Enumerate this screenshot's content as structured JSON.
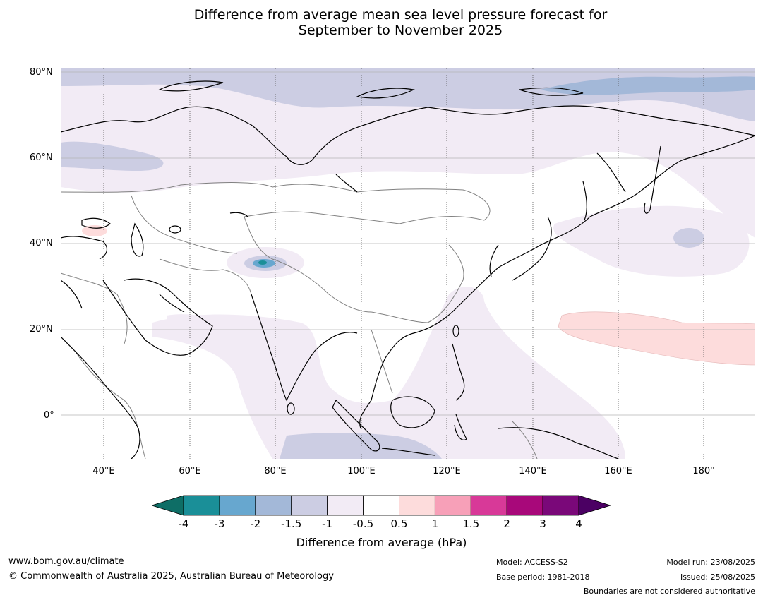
{
  "title_line1": "Difference from average mean sea level pressure forecast for",
  "title_line2": "September to November 2025",
  "lat_labels": [
    "80°N",
    "60°N",
    "40°N",
    "20°N",
    "0°"
  ],
  "lon_labels": [
    "40°E",
    "60°E",
    "80°E",
    "100°E",
    "120°E",
    "140°E",
    "160°E",
    "180°"
  ],
  "colorbar": {
    "ticks": [
      "-4",
      "-3",
      "-2",
      "-1.5",
      "-1",
      "-0.5",
      "0.5",
      "1",
      "1.5",
      "2",
      "3",
      "4"
    ],
    "colors": [
      "#0e6e66",
      "#1a8f98",
      "#67a7cf",
      "#a3b8d8",
      "#cccde3",
      "#f2ebf5",
      "#ffffff",
      "#fddcdc",
      "#f7a0b8",
      "#d83998",
      "#a8087a",
      "#7a0879",
      "#4b0063"
    ],
    "label": "Difference from average (hPa)"
  },
  "footer": {
    "website": "www.bom.gov.au/climate",
    "copyright": "© Commonwealth of Australia 2025, Australian Bureau of Meteorology",
    "model": "Model: ACCESS-S2",
    "base_period": "Base period: 1981-2018",
    "model_run": "Model run: 23/08/2025",
    "issued": "Issued: 25/08/2025",
    "disclaimer": "Boundaries are not considered authoritative"
  }
}
